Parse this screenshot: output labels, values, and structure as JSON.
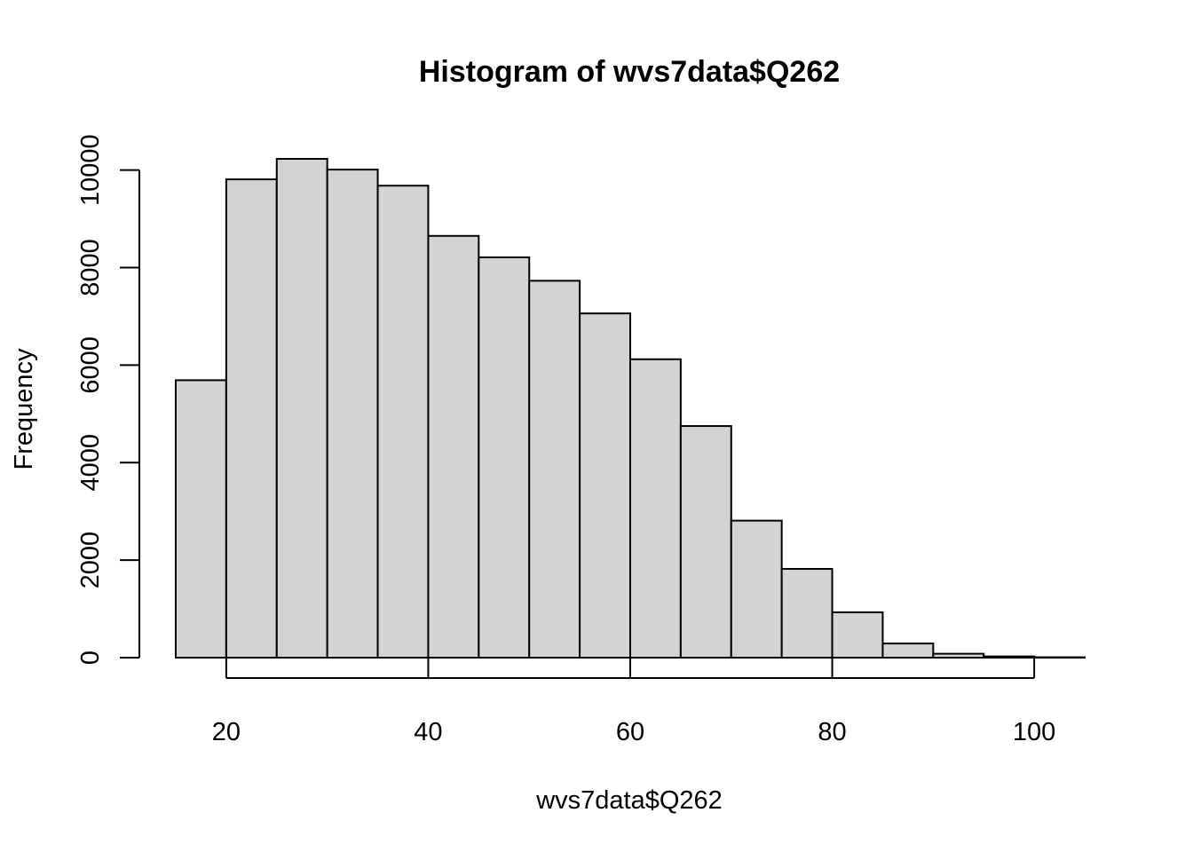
{
  "chart_data": {
    "type": "bar",
    "title": "Histogram of wvs7data$Q262",
    "xlabel": "wvs7data$Q262",
    "ylabel": "Frequency",
    "bin_edges": [
      15,
      20,
      25,
      30,
      35,
      40,
      45,
      50,
      55,
      60,
      65,
      70,
      75,
      80,
      85,
      90,
      95,
      100,
      105
    ],
    "values": [
      5690,
      9810,
      10230,
      10010,
      9680,
      8650,
      8210,
      7730,
      7060,
      6120,
      4750,
      2810,
      1820,
      930,
      290,
      80,
      25,
      8
    ],
    "xlim": [
      15,
      105
    ],
    "ylim": [
      0,
      10230
    ],
    "x_ticks": [
      20,
      40,
      60,
      80,
      100
    ],
    "x_tick_labels": [
      "20",
      "40",
      "60",
      "80",
      "100"
    ],
    "y_ticks": [
      0,
      2000,
      4000,
      6000,
      8000,
      10000
    ],
    "y_tick_labels": [
      "0",
      "2000",
      "4000",
      "6000",
      "8000",
      "10000"
    ],
    "bar_color": "#d3d3d3",
    "border_color": "#000000",
    "grid": false,
    "legend": false
  }
}
